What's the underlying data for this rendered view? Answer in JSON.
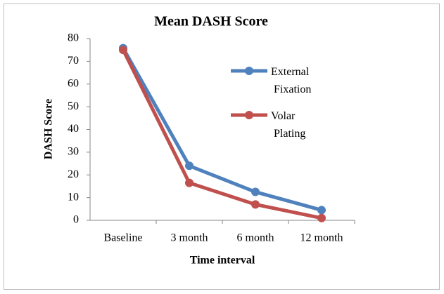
{
  "chart_data": {
    "type": "line",
    "title": "Mean DASH Score",
    "x_label": "Time interval",
    "y_label": "DASH Score",
    "categories": [
      "Baseline",
      "3 month",
      "6 month",
      "12 month"
    ],
    "series": [
      {
        "name": "External Fixation",
        "color": "#4f81bd",
        "values": [
          75.8,
          24,
          12.5,
          4.5
        ]
      },
      {
        "name": "Volar Plating",
        "color": "#c0504d",
        "values": [
          75,
          16.5,
          7,
          1
        ]
      }
    ],
    "ylim": [
      0,
      80
    ],
    "yticks": [
      0,
      10,
      20,
      30,
      40,
      50,
      60,
      70,
      80
    ],
    "grid": false,
    "legend": "right"
  }
}
